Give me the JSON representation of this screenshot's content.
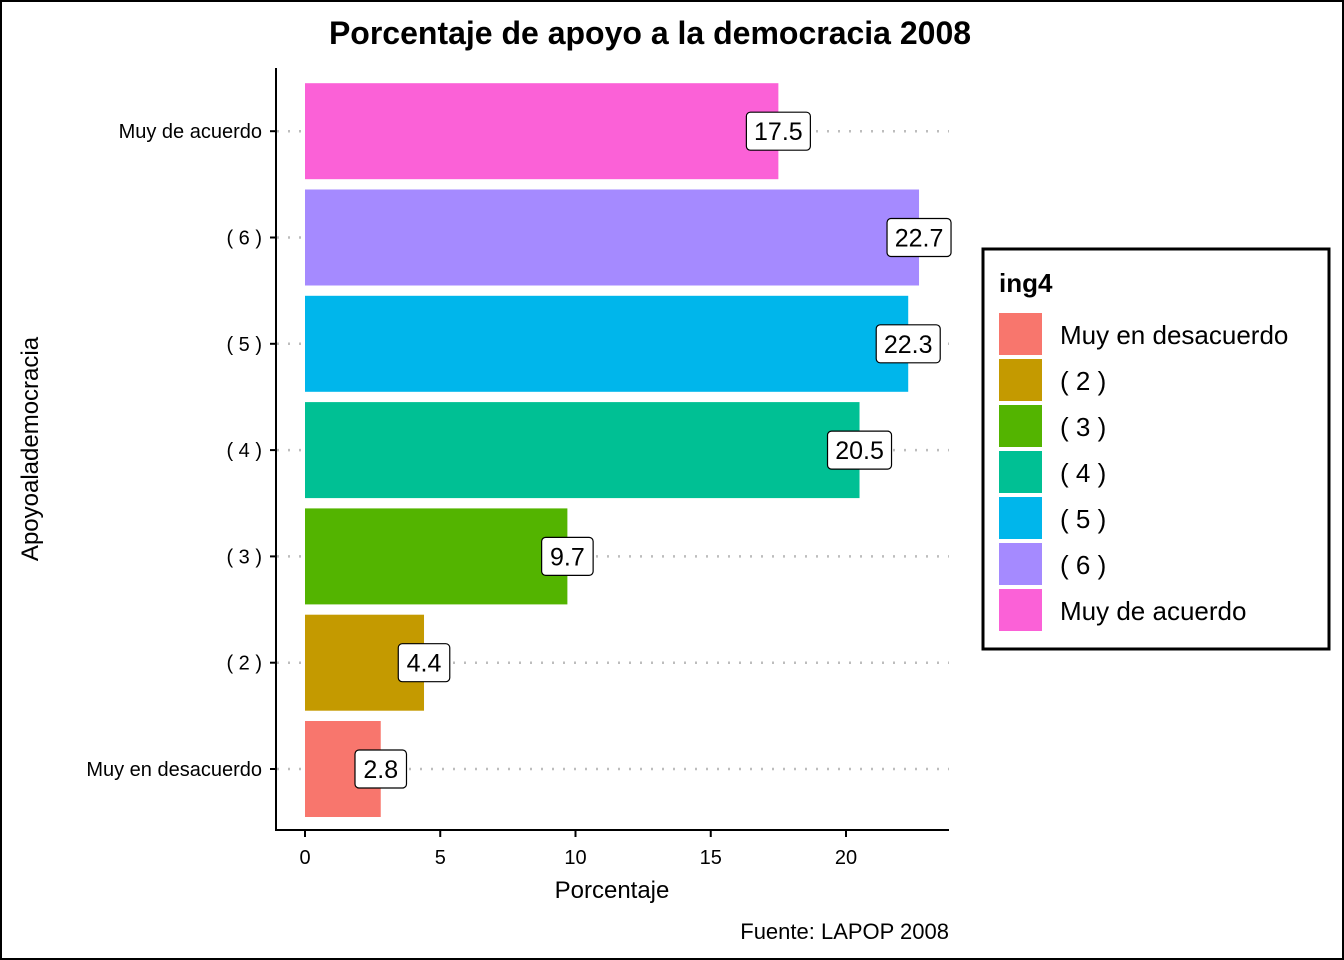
{
  "chart_data": {
    "type": "bar",
    "orientation": "horizontal",
    "title": "Porcentaje de apoyo a la democracia 2008",
    "xlabel": "Porcentaje",
    "ylabel": "Apoyoalademocracia",
    "caption": "Fuente: LAPOP 2008",
    "categories": [
      "Muy en desacuerdo",
      "( 2 )",
      "( 3 )",
      "( 4 )",
      "( 5 )",
      "( 6 )",
      "Muy de acuerdo"
    ],
    "values": [
      2.8,
      4.4,
      9.7,
      20.5,
      22.3,
      22.7,
      17.5
    ],
    "data_labels": [
      "2.8",
      "4.4",
      "9.7",
      "20.5",
      "22.3",
      "22.7",
      "17.5"
    ],
    "colors": [
      "#F8766D",
      "#C49A00",
      "#53B400",
      "#00C094",
      "#00B6EB",
      "#A58AFF",
      "#FB61D7"
    ],
    "xticks": [
      0,
      5,
      10,
      15,
      20
    ],
    "xtick_labels": [
      "0",
      "5",
      "10",
      "15",
      "20"
    ],
    "xlim": [
      -1.1,
      23.85
    ],
    "grid": "dotted horizontal at categories",
    "legend": {
      "title": "ing4",
      "position": "right",
      "entries": [
        "Muy en desacuerdo",
        "( 2 )",
        "( 3 )",
        "( 4 )",
        "( 5 )",
        "( 6 )",
        "Muy de acuerdo"
      ]
    }
  }
}
